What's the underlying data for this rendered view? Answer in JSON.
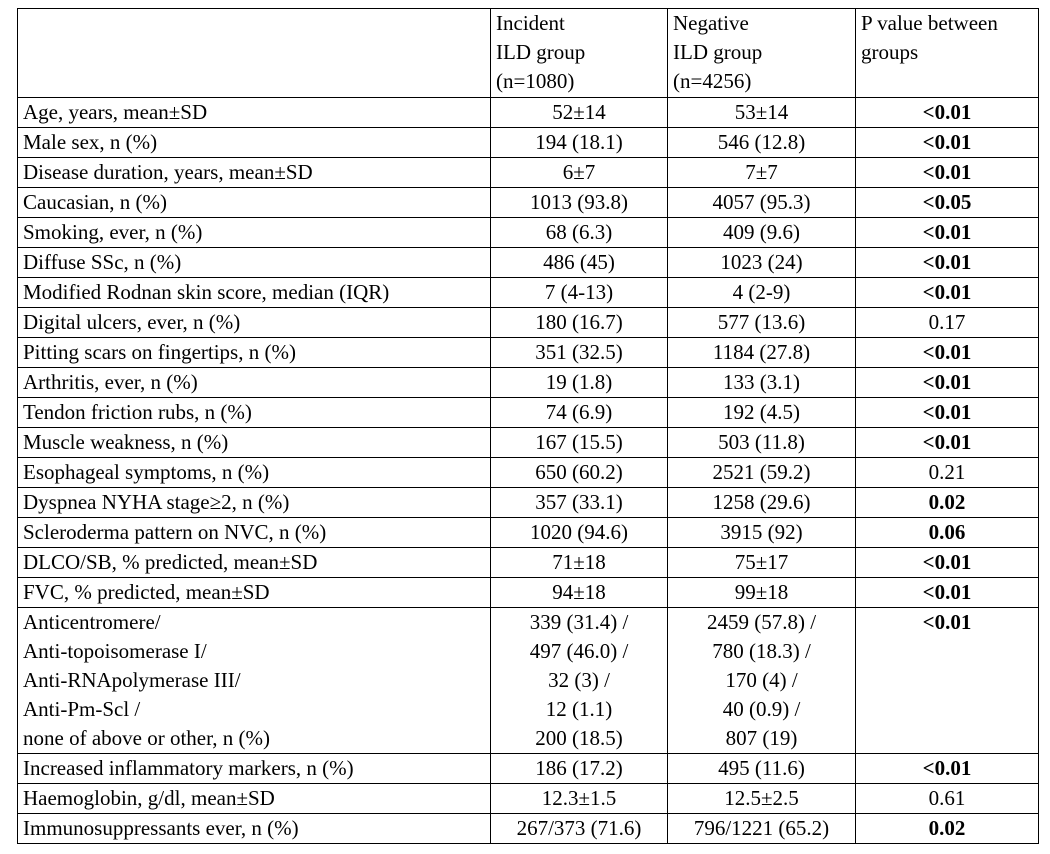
{
  "table": {
    "header": [
      "",
      [
        "Incident",
        "ILD group",
        "(n=1080)"
      ],
      [
        "Negative",
        "ILD group",
        "(n=4256)"
      ],
      [
        "P value between",
        "groups"
      ]
    ],
    "rows": [
      {
        "label": "Age, years, mean±SD",
        "incident": "52±14",
        "negative": "53±14",
        "p": "<0.01",
        "p_bold": true
      },
      {
        "label": "Male sex, n (%)",
        "incident": "194 (18.1)",
        "negative": "546 (12.8)",
        "p": "<0.01",
        "p_bold": true
      },
      {
        "label": "Disease duration, years, mean±SD",
        "incident": "6±7",
        "negative": "7±7",
        "p": "<0.01",
        "p_bold": true
      },
      {
        "label": "Caucasian, n (%)",
        "incident": "1013 (93.8)",
        "negative": "4057 (95.3)",
        "p": "<0.05",
        "p_bold": true
      },
      {
        "label": "Smoking, ever, n (%)",
        "incident": "68 (6.3)",
        "negative": "409 (9.6)",
        "p": "<0.01",
        "p_bold": true
      },
      {
        "label": "Diffuse SSc, n (%)",
        "incident": "486 (45)",
        "negative": "1023 (24)",
        "p": "<0.01",
        "p_bold": true
      },
      {
        "label": "Modified Rodnan skin score, median (IQR)",
        "incident": "7 (4-13)",
        "negative": "4 (2-9)",
        "p": "<0.01",
        "p_bold": true
      },
      {
        "label": "Digital ulcers, ever, n (%)",
        "incident": "180 (16.7)",
        "negative": "577 (13.6)",
        "p": "0.17",
        "p_bold": false
      },
      {
        "label": "Pitting scars on fingertips, n (%)",
        "incident": "351 (32.5)",
        "negative": "1184 (27.8)",
        "p": "<0.01",
        "p_bold": true
      },
      {
        "label": "Arthritis, ever, n (%)",
        "incident": "19 (1.8)",
        "negative": "133 (3.1)",
        "p": "<0.01",
        "p_bold": true
      },
      {
        "label": "Tendon friction rubs, n (%)",
        "incident": "74 (6.9)",
        "negative": "192 (4.5)",
        "p": "<0.01",
        "p_bold": true
      },
      {
        "label": "Muscle weakness, n (%)",
        "incident": "167 (15.5)",
        "negative": "503 (11.8)",
        "p": "<0.01",
        "p_bold": true
      },
      {
        "label": "Esophageal symptoms, n (%)",
        "incident": "650 (60.2)",
        "negative": "2521 (59.2)",
        "p": "0.21",
        "p_bold": false
      },
      {
        "label": "Dyspnea NYHA stage≥2, n (%)",
        "incident": "357 (33.1)",
        "negative": "1258 (29.6)",
        "p": "0.02",
        "p_bold": true
      },
      {
        "label": "Scleroderma pattern on NVC, n (%)",
        "incident": "1020 (94.6)",
        "negative": "3915 (92)",
        "p": "0.06",
        "p_bold": true
      },
      {
        "label": "DLCO/SB, % predicted, mean±SD",
        "incident": "71±18",
        "negative": "75±17",
        "p": "<0.01",
        "p_bold": true
      },
      {
        "label": "FVC, % predicted, mean±SD",
        "incident": "94±18",
        "negative": "99±18",
        "p": "<0.01",
        "p_bold": true
      },
      {
        "label": [
          "Anticentromere/",
          "Anti-topoisomerase I/",
          "Anti-RNApolymerase III/",
          "Anti-Pm-Scl /",
          "none of above or other, n (%)"
        ],
        "incident": [
          "339 (31.4) /",
          "497 (46.0) /",
          "32 (3) /",
          "12 (1.1)",
          "200 (18.5)"
        ],
        "negative": [
          "2459 (57.8) /",
          "780 (18.3) /",
          "170 (4) /",
          "40 (0.9) /",
          "807 (19)"
        ],
        "p": "<0.01",
        "p_bold": true
      },
      {
        "label": "Increased inflammatory markers, n (%)",
        "incident": "186 (17.2)",
        "negative": "495 (11.6)",
        "p": "<0.01",
        "p_bold": true
      },
      {
        "label": "Haemoglobin, g/dl, mean±SD",
        "incident": "12.3±1.5",
        "negative": "12.5±2.5",
        "p": "0.61",
        "p_bold": false
      },
      {
        "label": "Immunosuppressants ever, n (%)",
        "incident": "267/373 (71.6)",
        "negative": "796/1221 (65.2)",
        "p": "0.02",
        "p_bold": true
      }
    ]
  }
}
